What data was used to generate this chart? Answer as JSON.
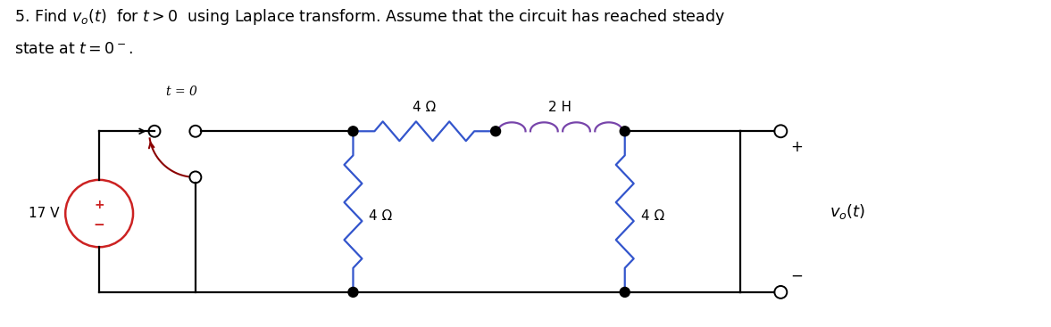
{
  "title_line1": "5. Find $v_o(t)$  for $t > 0$  using Laplace transform. Assume that the circuit has reached steady",
  "title_line2": "state at $t = 0^-$.",
  "background_color": "#ffffff",
  "text_color": "#000000",
  "resistor_color_blue": "#3355cc",
  "resistor_color_blue2": "#3355cc",
  "inductor_color": "#7744aa",
  "source_color": "#cc2222",
  "wire_color": "#000000",
  "switch_blade_color": "#8B0000",
  "label_4ohm_1": "4 Ω",
  "label_2H": "2 H",
  "label_4ohm_2": "4 Ω",
  "label_4ohm_3": "4 Ω",
  "label_17V": "17 V",
  "label_t0": "t = 0",
  "label_vo": "$v_o(t)$",
  "label_plus": "+",
  "label_minus": "−",
  "figwidth": 11.77,
  "figheight": 3.67,
  "dpi": 100
}
